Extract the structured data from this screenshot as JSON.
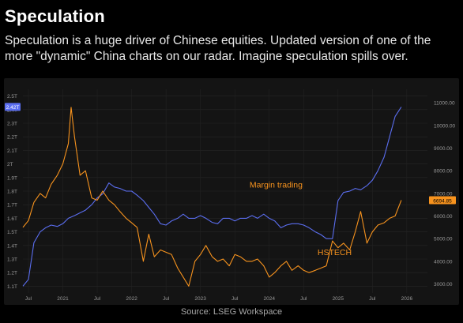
{
  "header": {
    "title": "Speculation",
    "subtitle": "Speculation is a huge driver of Chinese equities. Updated version of one of the more \"dynamic\" China charts on our radar. Imagine speculation spills over."
  },
  "footer": {
    "source": "Source: LSEG Workspace"
  },
  "colors": {
    "margin": "#f7931e",
    "hstech": "#5b6ef0",
    "background": "#000000",
    "panel": "#141414"
  },
  "chart_data": {
    "type": "line",
    "x_ticks": [
      "Jul",
      "2021",
      "Jul",
      "2022",
      "Jul",
      "2023",
      "Jul",
      "2024",
      "Jul",
      "2025",
      "Jul",
      "2026"
    ],
    "x_tick_years": [
      2020.5,
      2021.0,
      2021.5,
      2022.0,
      2022.5,
      2023.0,
      2023.5,
      2024.0,
      2024.5,
      2025.0,
      2025.5,
      2026.0
    ],
    "xlim": [
      2020.42,
      2026.3
    ],
    "left_axis": {
      "ylim": [
        1.05,
        2.55
      ],
      "ticks": [
        "1.1T",
        "1.2T",
        "1.3T",
        "1.4T",
        "1.5T",
        "1.6T",
        "1.7T",
        "1.8T",
        "1.9T",
        "2T",
        "2.1T",
        "2.2T",
        "2.3T",
        "2.4T",
        "2.5T"
      ],
      "tick_values": [
        1.1,
        1.2,
        1.3,
        1.4,
        1.5,
        1.6,
        1.7,
        1.8,
        1.9,
        2.0,
        2.1,
        2.2,
        2.3,
        2.4,
        2.5
      ],
      "last_value_label": "2.42T"
    },
    "right_axis": {
      "ylim": [
        2600,
        11600
      ],
      "ticks": [
        "3000.00",
        "4000.00",
        "5000.00",
        "6000.00",
        "7000.00",
        "8000.00",
        "9000.00",
        "10000.00",
        "11000.00"
      ],
      "tick_values": [
        3000,
        4000,
        5000,
        6000,
        7000,
        8000,
        9000,
        10000,
        11000
      ],
      "last_value_label": "6694.85"
    },
    "series": [
      {
        "name": "HSTECH",
        "axis": "left",
        "points": [
          [
            2020.42,
            1.1
          ],
          [
            2020.5,
            1.15
          ],
          [
            2020.58,
            1.42
          ],
          [
            2020.67,
            1.5
          ],
          [
            2020.75,
            1.53
          ],
          [
            2020.83,
            1.55
          ],
          [
            2020.92,
            1.54
          ],
          [
            2021.0,
            1.56
          ],
          [
            2021.08,
            1.6
          ],
          [
            2021.17,
            1.62
          ],
          [
            2021.25,
            1.64
          ],
          [
            2021.33,
            1.66
          ],
          [
            2021.42,
            1.7
          ],
          [
            2021.5,
            1.75
          ],
          [
            2021.58,
            1.78
          ],
          [
            2021.67,
            1.86
          ],
          [
            2021.75,
            1.83
          ],
          [
            2021.83,
            1.82
          ],
          [
            2021.92,
            1.8
          ],
          [
            2022.0,
            1.8
          ],
          [
            2022.08,
            1.77
          ],
          [
            2022.17,
            1.73
          ],
          [
            2022.25,
            1.68
          ],
          [
            2022.33,
            1.63
          ],
          [
            2022.42,
            1.56
          ],
          [
            2022.5,
            1.55
          ],
          [
            2022.58,
            1.58
          ],
          [
            2022.67,
            1.6
          ],
          [
            2022.75,
            1.63
          ],
          [
            2022.83,
            1.6
          ],
          [
            2022.92,
            1.6
          ],
          [
            2023.0,
            1.62
          ],
          [
            2023.08,
            1.6
          ],
          [
            2023.17,
            1.57
          ],
          [
            2023.25,
            1.56
          ],
          [
            2023.33,
            1.6
          ],
          [
            2023.42,
            1.6
          ],
          [
            2023.5,
            1.58
          ],
          [
            2023.58,
            1.6
          ],
          [
            2023.67,
            1.6
          ],
          [
            2023.75,
            1.62
          ],
          [
            2023.83,
            1.6
          ],
          [
            2023.92,
            1.63
          ],
          [
            2024.0,
            1.6
          ],
          [
            2024.08,
            1.58
          ],
          [
            2024.17,
            1.53
          ],
          [
            2024.25,
            1.55
          ],
          [
            2024.33,
            1.56
          ],
          [
            2024.42,
            1.56
          ],
          [
            2024.5,
            1.55
          ],
          [
            2024.58,
            1.53
          ],
          [
            2024.67,
            1.5
          ],
          [
            2024.75,
            1.48
          ],
          [
            2024.83,
            1.45
          ],
          [
            2024.92,
            1.45
          ],
          [
            2025.0,
            1.73
          ],
          [
            2025.08,
            1.79
          ],
          [
            2025.17,
            1.8
          ],
          [
            2025.25,
            1.82
          ],
          [
            2025.33,
            1.81
          ],
          [
            2025.42,
            1.84
          ],
          [
            2025.5,
            1.88
          ],
          [
            2025.58,
            1.95
          ],
          [
            2025.67,
            2.05
          ],
          [
            2025.75,
            2.2
          ],
          [
            2025.83,
            2.35
          ],
          [
            2025.92,
            2.42
          ]
        ]
      },
      {
        "name": "Margin trading",
        "axis": "right",
        "points": [
          [
            2020.42,
            5500
          ],
          [
            2020.5,
            5800
          ],
          [
            2020.58,
            6600
          ],
          [
            2020.67,
            7000
          ],
          [
            2020.75,
            6800
          ],
          [
            2020.83,
            7400
          ],
          [
            2020.92,
            7800
          ],
          [
            2021.0,
            8300
          ],
          [
            2021.08,
            9200
          ],
          [
            2021.12,
            10800
          ],
          [
            2021.17,
            9500
          ],
          [
            2021.25,
            7800
          ],
          [
            2021.33,
            8000
          ],
          [
            2021.42,
            6800
          ],
          [
            2021.5,
            6700
          ],
          [
            2021.58,
            7100
          ],
          [
            2021.67,
            6700
          ],
          [
            2021.75,
            6500
          ],
          [
            2021.83,
            6200
          ],
          [
            2021.92,
            5900
          ],
          [
            2022.0,
            5700
          ],
          [
            2022.08,
            5500
          ],
          [
            2022.17,
            4000
          ],
          [
            2022.25,
            5200
          ],
          [
            2022.33,
            4200
          ],
          [
            2022.42,
            4500
          ],
          [
            2022.5,
            4400
          ],
          [
            2022.58,
            4300
          ],
          [
            2022.67,
            3700
          ],
          [
            2022.75,
            3300
          ],
          [
            2022.83,
            2900
          ],
          [
            2022.92,
            4000
          ],
          [
            2023.0,
            4300
          ],
          [
            2023.08,
            4700
          ],
          [
            2023.17,
            4200
          ],
          [
            2023.25,
            4000
          ],
          [
            2023.33,
            4100
          ],
          [
            2023.42,
            3800
          ],
          [
            2023.5,
            4300
          ],
          [
            2023.58,
            4200
          ],
          [
            2023.67,
            4000
          ],
          [
            2023.75,
            4000
          ],
          [
            2023.83,
            4100
          ],
          [
            2023.92,
            3800
          ],
          [
            2024.0,
            3300
          ],
          [
            2024.08,
            3500
          ],
          [
            2024.17,
            3800
          ],
          [
            2024.25,
            4000
          ],
          [
            2024.33,
            3600
          ],
          [
            2024.42,
            3800
          ],
          [
            2024.5,
            3600
          ],
          [
            2024.58,
            3500
          ],
          [
            2024.67,
            3600
          ],
          [
            2024.75,
            3700
          ],
          [
            2024.83,
            3800
          ],
          [
            2024.92,
            4900
          ],
          [
            2025.0,
            4600
          ],
          [
            2025.08,
            4800
          ],
          [
            2025.17,
            4500
          ],
          [
            2025.25,
            5300
          ],
          [
            2025.33,
            6200
          ],
          [
            2025.42,
            4800
          ],
          [
            2025.5,
            5300
          ],
          [
            2025.58,
            5600
          ],
          [
            2025.67,
            5700
          ],
          [
            2025.75,
            5900
          ],
          [
            2025.83,
            6000
          ],
          [
            2025.92,
            6700
          ]
        ]
      }
    ],
    "annotations": [
      {
        "text": "Margin trading",
        "series": "Margin trading"
      },
      {
        "text": "HSTECH",
        "series": "HSTECH"
      }
    ]
  }
}
